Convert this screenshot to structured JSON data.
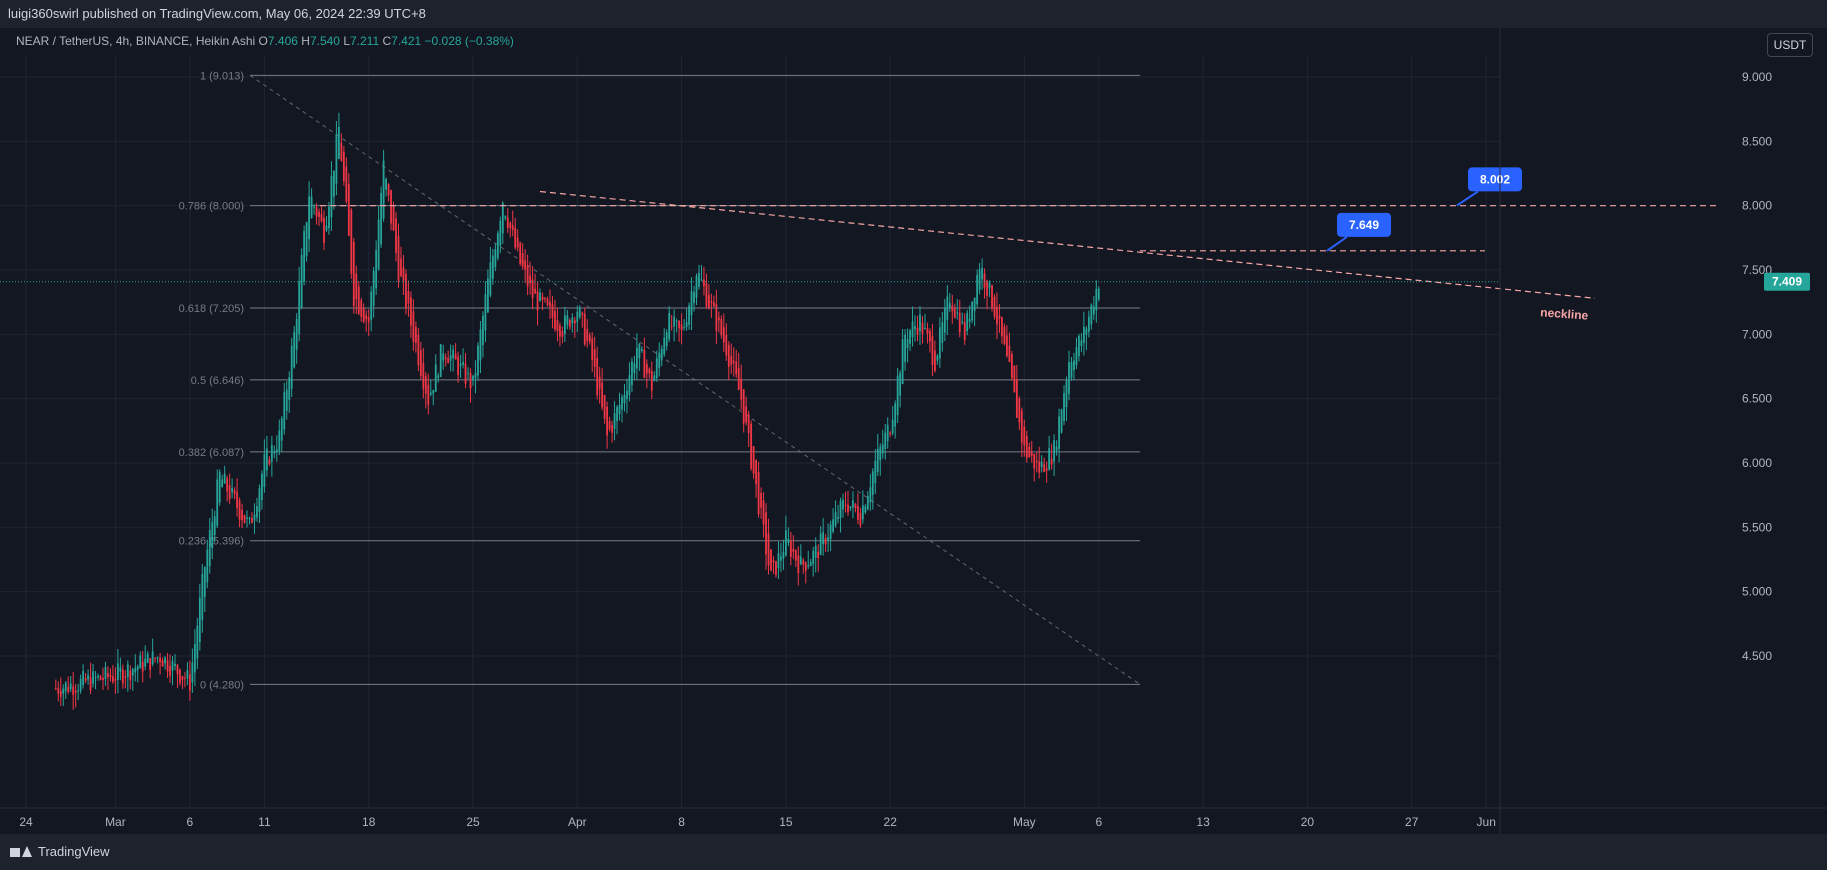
{
  "header": {
    "publisher_line": "luigi360swirl published on TradingView.com, May 06, 2024 22:39 UTC+8"
  },
  "legend": {
    "symbol": "NEAR / TetherUS, 4h, BINANCE, Heikin Ashi",
    "o_label": "O",
    "o": "7.406",
    "h_label": "H",
    "h": "7.540",
    "l_label": "L",
    "l": "7.211",
    "c_label": "C",
    "c": "7.421",
    "change": "−0.028 (−0.38%)"
  },
  "unit_button": "USDT",
  "footer": {
    "brand": "TradingView"
  },
  "colors": {
    "background": "#131722",
    "up": "#26a69a",
    "down": "#f23645",
    "fib_line": "#787b86",
    "resistance": "#f7a6a6",
    "callout": "#2962ff"
  },
  "chart_data": {
    "type": "candlestick",
    "style": "Heikin Ashi",
    "symbol": "NEAR / TetherUS",
    "interval": "4h",
    "exchange": "BINANCE",
    "ylim": [
      4.2,
      9.2
    ],
    "y_ticks": [
      "9.000",
      "8.500",
      "8.000",
      "7.500",
      "7.000",
      "6.500",
      "6.000",
      "5.500",
      "5.000",
      "4.500"
    ],
    "x_ticks": [
      "24",
      "Mar",
      "6",
      "11",
      "18",
      "25",
      "Apr",
      "8",
      "15",
      "22",
      "May",
      "6",
      "13",
      "20",
      "27",
      "Jun"
    ],
    "last_price": "7.409",
    "fib_levels": [
      {
        "ratio": "1",
        "price": 9.013,
        "label": "1 (9.013)"
      },
      {
        "ratio": "0.786",
        "price": 8.0,
        "label": "0.786 (8.000)"
      },
      {
        "ratio": "0.618",
        "price": 7.205,
        "label": "0.618 (7.205)"
      },
      {
        "ratio": "0.5",
        "price": 6.646,
        "label": "0.5 (6.646)"
      },
      {
        "ratio": "0.382",
        "price": 6.087,
        "label": "0.382 (6.087)"
      },
      {
        "ratio": "0.236",
        "price": 5.396,
        "label": "0.236 (5.396)"
      },
      {
        "ratio": "0",
        "price": 4.28,
        "label": "0 (4.280)"
      }
    ],
    "callouts": [
      {
        "label": "8.002",
        "price": 8.002
      },
      {
        "label": "7.649",
        "price": 7.649
      }
    ],
    "annotations": [
      "neckline"
    ],
    "path": [
      [
        "Feb 26",
        4.25
      ],
      [
        "Mar 1",
        4.35
      ],
      [
        "Mar 4",
        4.5
      ],
      [
        "Mar 6",
        4.3
      ],
      [
        "Mar 7",
        5.2
      ],
      [
        "Mar 8",
        5.9
      ],
      [
        "Mar 10",
        5.5
      ],
      [
        "Mar 11",
        6.0
      ],
      [
        "Mar 12",
        6.2
      ],
      [
        "Mar 13",
        7.0
      ],
      [
        "Mar 14",
        8.1
      ],
      [
        "Mar 15",
        7.8
      ],
      [
        "Mar 16",
        8.6
      ],
      [
        "Mar 17",
        7.3
      ],
      [
        "Mar 18",
        7.1
      ],
      [
        "Mar 19",
        8.3
      ],
      [
        "Mar 20",
        7.5
      ],
      [
        "Mar 21",
        7.0
      ],
      [
        "Mar 22",
        6.5
      ],
      [
        "Mar 23",
        6.9
      ],
      [
        "Mar 25",
        6.6
      ],
      [
        "Mar 26",
        7.4
      ],
      [
        "Mar 27",
        8.05
      ],
      [
        "Mar 28",
        7.6
      ],
      [
        "Mar 29",
        7.3
      ],
      [
        "Mar 31",
        7.05
      ],
      [
        "Apr 1",
        7.2
      ],
      [
        "Apr 2",
        6.8
      ],
      [
        "Apr 3",
        6.2
      ],
      [
        "Apr 4",
        6.5
      ],
      [
        "Apr 5",
        6.9
      ],
      [
        "Apr 6",
        6.6
      ],
      [
        "Apr 7",
        7.1
      ],
      [
        "Apr 8",
        7.0
      ],
      [
        "Apr 9",
        7.5
      ],
      [
        "Apr 10",
        7.2
      ],
      [
        "Apr 11",
        6.9
      ],
      [
        "Apr 12",
        6.5
      ],
      [
        "Apr 13",
        5.8
      ],
      [
        "Apr 14",
        5.1
      ],
      [
        "Apr 15",
        5.4
      ],
      [
        "Apr 16",
        5.2
      ],
      [
        "Apr 17",
        5.3
      ],
      [
        "Apr 18",
        5.5
      ],
      [
        "Apr 19",
        5.7
      ],
      [
        "Apr 20",
        5.6
      ],
      [
        "Apr 21",
        6.0
      ],
      [
        "Apr 22",
        6.3
      ],
      [
        "Apr 23",
        7.0
      ],
      [
        "Apr 24",
        7.1
      ],
      [
        "Apr 25",
        6.8
      ],
      [
        "Apr 26",
        7.3
      ],
      [
        "Apr 27",
        7.0
      ],
      [
        "Apr 28",
        7.55
      ],
      [
        "Apr 29",
        7.2
      ],
      [
        "Apr 30",
        6.7
      ],
      [
        "May 1",
        6.1
      ],
      [
        "May 2",
        5.95
      ],
      [
        "May 3",
        6.1
      ],
      [
        "May 4",
        6.8
      ],
      [
        "May 5",
        7.0
      ],
      [
        "May 6",
        7.42
      ]
    ]
  }
}
